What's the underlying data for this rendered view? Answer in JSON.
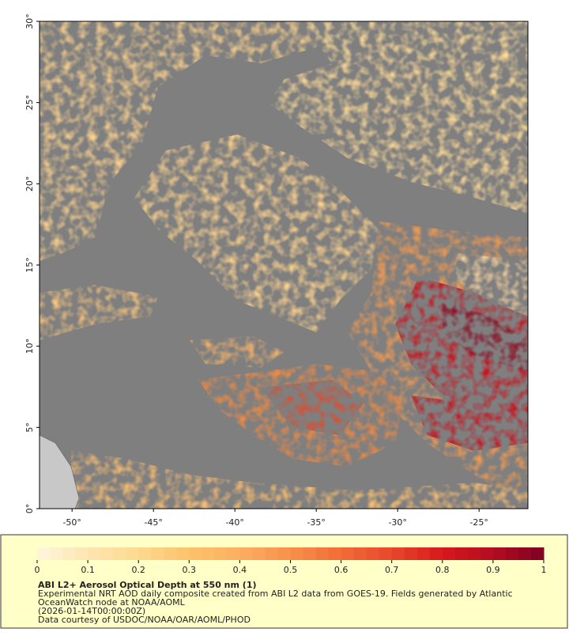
{
  "map": {
    "xlim": [
      -52,
      -22
    ],
    "ylim": [
      0,
      30
    ],
    "xticks": [
      {
        "value": -50,
        "label": "-50°"
      },
      {
        "value": -45,
        "label": "-45°"
      },
      {
        "value": -40,
        "label": "-40°"
      },
      {
        "value": -35,
        "label": "-35°"
      },
      {
        "value": -30,
        "label": "-30°"
      },
      {
        "value": -25,
        "label": "-25°"
      }
    ],
    "yticks": [
      {
        "value": 0,
        "label": "0°"
      },
      {
        "value": 5,
        "label": "5°"
      },
      {
        "value": 10,
        "label": "10°"
      },
      {
        "value": 15,
        "label": "15°"
      },
      {
        "value": 20,
        "label": "20°"
      },
      {
        "value": 25,
        "label": "25°"
      },
      {
        "value": 30,
        "label": "30°"
      }
    ],
    "background": "#7f7f7f"
  },
  "colorbar": {
    "lim": [
      0,
      1
    ],
    "ticks": [
      0,
      0.1,
      0.2,
      0.3,
      0.4,
      0.5,
      0.6,
      0.7,
      0.8,
      0.9,
      1
    ],
    "colors": [
      "#fff6dc",
      "#fee6b0",
      "#fed98e",
      "#fdc26a",
      "#fdae61",
      "#f8904a",
      "#f26b37",
      "#e8482b",
      "#d7191c",
      "#b30c1f",
      "#800026"
    ]
  },
  "footer": {
    "title": "ABI L2+ Aerosol Optical Depth at 550 nm (1)",
    "lines": [
      "Experimental NRT AOD daily composite created from ABI L2 data from GOES-19. Fields generated by Atlantic",
      "OceanWatch node at NOAA/AOML",
      "(2026-01-14T00:00:00Z)",
      "Data courtesy of USDOC/NOAA/OAR/AOML/PHOD"
    ]
  }
}
